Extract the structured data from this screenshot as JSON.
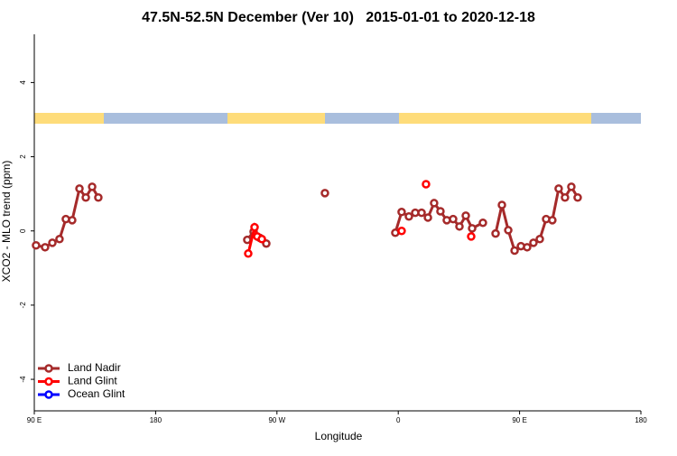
{
  "chart_data": {
    "type": "line",
    "title": "47.5N-52.5N December (Ver 10)   2015-01-01 to 2020-12-18",
    "x_label": "Longitude",
    "y_label": "XCO2 - MLO trend (ppm)",
    "xlim": [
      90,
      540
    ],
    "xticks": [
      {
        "value": 90,
        "label": "90 E"
      },
      {
        "value": 180,
        "label": "180"
      },
      {
        "value": 270,
        "label": "90 W"
      },
      {
        "value": 360,
        "label": "0"
      },
      {
        "value": 450,
        "label": "90 E"
      },
      {
        "value": 540,
        "label": "180"
      }
    ],
    "ylim": [
      -4.85,
      5.3
    ],
    "yticks": [
      -4,
      -2,
      0,
      2,
      4
    ],
    "legend": "bottom-left",
    "series": [
      {
        "name": "Land Nadir",
        "color": "#a52a2a",
        "x": [
          91.3,
          98.0,
          103.4,
          108.7,
          113.4,
          118.1,
          123.5,
          128.2,
          132.9,
          137.5,
          null,
          248.0,
          252.7,
          257.4,
          262.1,
          null,
          305.6,
          null,
          357.8,
          362.5,
          367.9,
          372.6,
          377.3,
          382.0,
          386.6,
          391.3,
          396.0,
          400.7,
          405.4,
          410.1,
          414.8,
          422.8,
          null,
          432.2,
          436.9,
          441.6,
          446.3,
          451.0,
          455.6,
          460.3,
          465.0,
          469.7,
          474.3,
          479.0,
          483.7,
          488.4,
          493.1
        ],
        "values": [
          -0.39,
          -0.44,
          -0.32,
          -0.22,
          0.32,
          0.29,
          1.14,
          0.9,
          1.19,
          0.9,
          null,
          -0.24,
          -0.02,
          -0.19,
          -0.34,
          null,
          1.02,
          null,
          -0.05,
          0.51,
          0.39,
          0.49,
          0.49,
          0.36,
          0.75,
          0.53,
          0.29,
          0.32,
          0.12,
          0.41,
          0.07,
          0.22,
          null,
          -0.07,
          0.7,
          0.02,
          -0.53,
          -0.41,
          -0.44,
          -0.32,
          -0.22,
          0.32,
          0.29,
          1.14,
          0.9,
          1.19,
          0.9
        ]
      },
      {
        "name": "Land Glint",
        "color": "#ff0000",
        "x": [
          248.7,
          253.4,
          255.4,
          258.8,
          null,
          362.5,
          null,
          380.6,
          null,
          414.1
        ],
        "values": [
          -0.61,
          0.1,
          -0.15,
          -0.22,
          null,
          0.0,
          null,
          1.26,
          null,
          -0.15
        ]
      },
      {
        "name": "Ocean Glint",
        "color": "#0000ff",
        "x": [],
        "values": []
      }
    ]
  }
}
